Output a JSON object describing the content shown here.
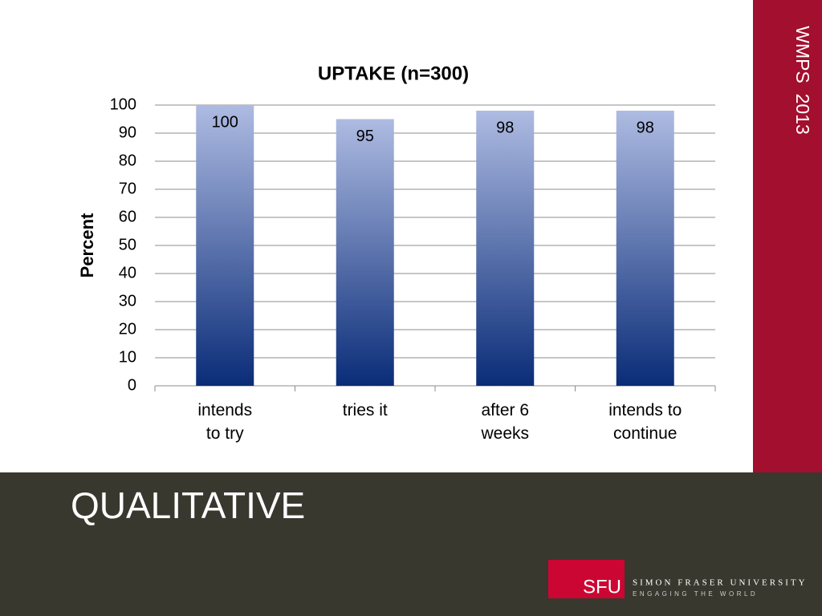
{
  "chart_data": {
    "type": "bar",
    "title": "UPTAKE (n=300)",
    "y_label": "Percent",
    "categories": [
      "intends\nto try",
      "tries it",
      "after 6\nweeks",
      "intends to\ncontinue"
    ],
    "values": [
      100,
      95,
      98,
      98
    ],
    "color_top": "#aebbe2",
    "color_bottom": "#0a2c78",
    "ylim": [
      0,
      100
    ],
    "yticks": [
      0,
      10,
      20,
      30,
      40,
      50,
      60,
      70,
      80,
      90,
      100
    ],
    "grid": true,
    "data_labels": true
  },
  "slide": {
    "side_label": "WMPS  2013",
    "heading": "QUALITATIVE",
    "logo": {
      "mark": "SFU",
      "name": "SIMON FRASER UNIVERSITY",
      "tagline": "ENGAGING THE WORLD"
    }
  }
}
